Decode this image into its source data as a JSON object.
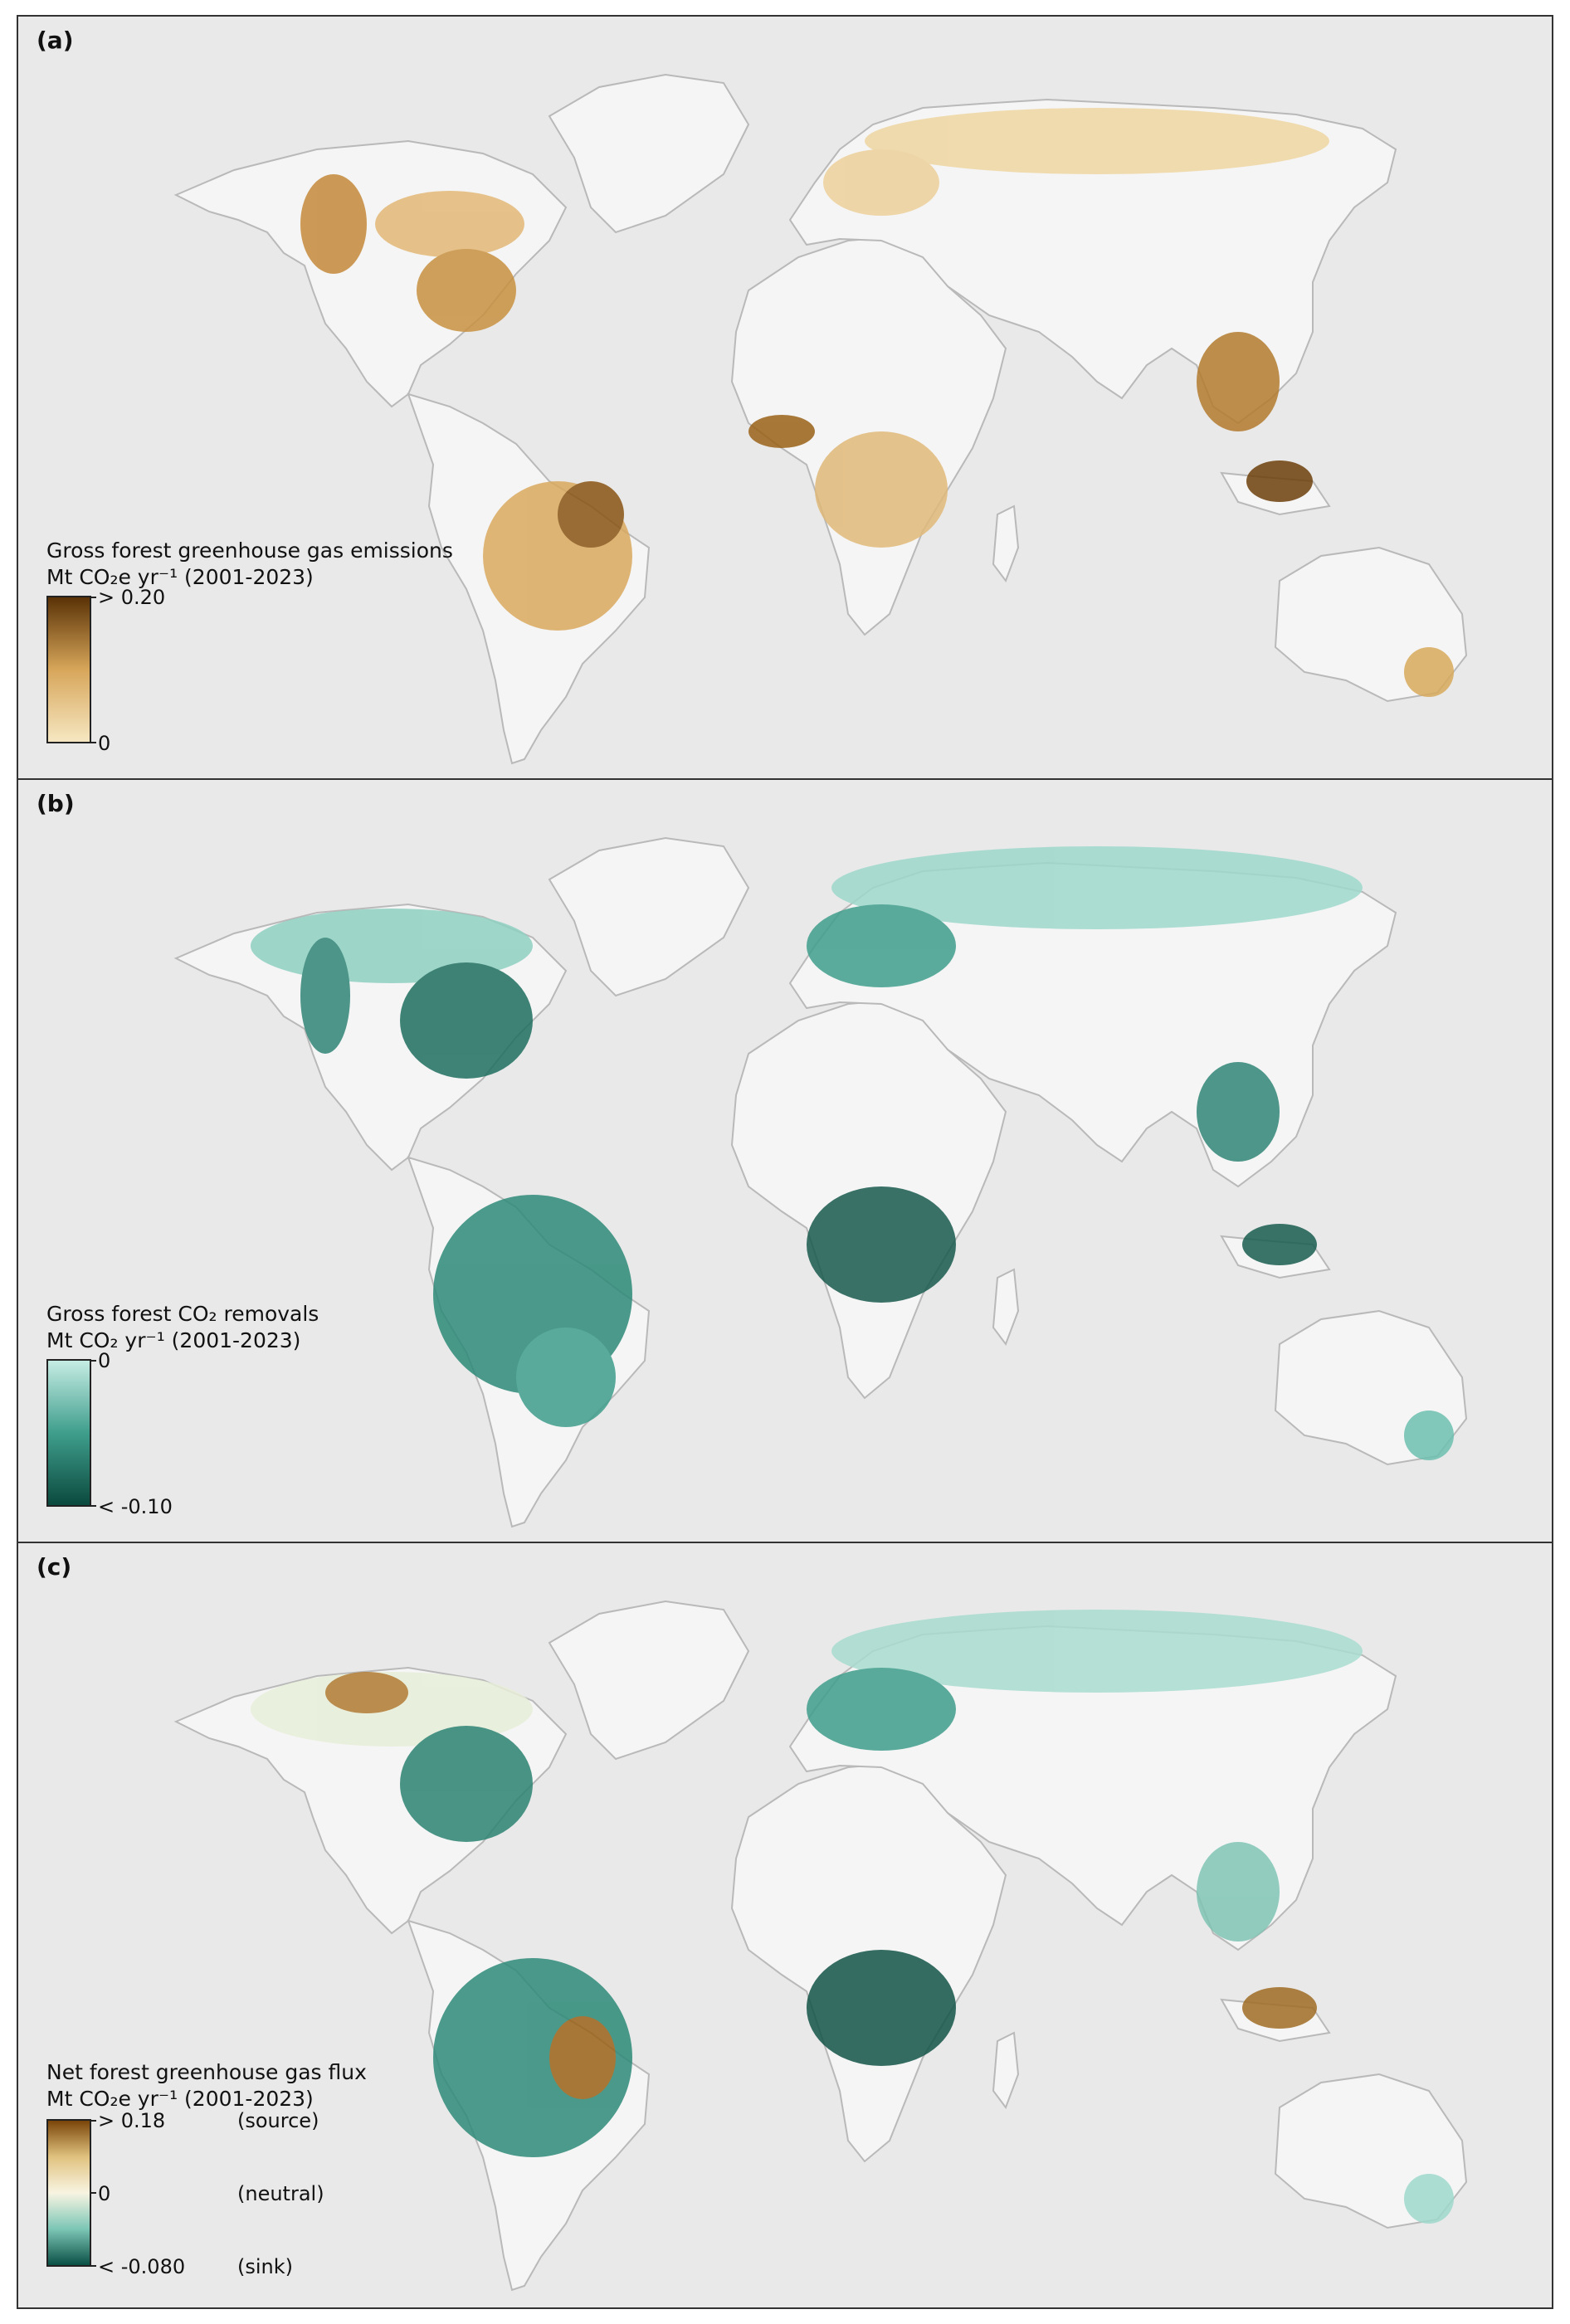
{
  "panels": {
    "a": {
      "label": "(a)",
      "legend_title_1": "Gross forest greenhouse gas emissions",
      "legend_unit": "Mt CO₂e yr⁻¹ (2001-2023)",
      "tick_top": "> 0.20",
      "tick_bottom": "0",
      "colors": {
        "low": "#f6e7c2",
        "mid": "#d7a65a",
        "high": "#5a3206"
      }
    },
    "b": {
      "label": "(b)",
      "legend_title_1": "Gross forest CO₂ removals",
      "legend_unit": "Mt CO₂ yr⁻¹ (2001-2023)",
      "tick_top": "0",
      "tick_bottom": "< -0.10",
      "colors": {
        "low": "#c6ece4",
        "mid": "#3f9e8c",
        "high": "#0b4a3e"
      }
    },
    "c": {
      "label": "(c)",
      "legend_title_1": "Net forest greenhouse gas flux",
      "legend_unit": "Mt CO₂e yr⁻¹ (2001-2023)",
      "tick_top": "> 0.18",
      "tick_mid": "0",
      "tick_bottom": "< -0.080",
      "note_top": "(source)",
      "note_mid": "(neutral)",
      "note_bottom": "(sink)",
      "colors": {
        "source": "#7a4508",
        "neutral": "#f8f4e2",
        "sink": "#0b5045"
      }
    }
  },
  "map_colors": {
    "ocean": "#e9e9e9",
    "land": "#f5f5f5",
    "border": "#b9b9b9"
  }
}
